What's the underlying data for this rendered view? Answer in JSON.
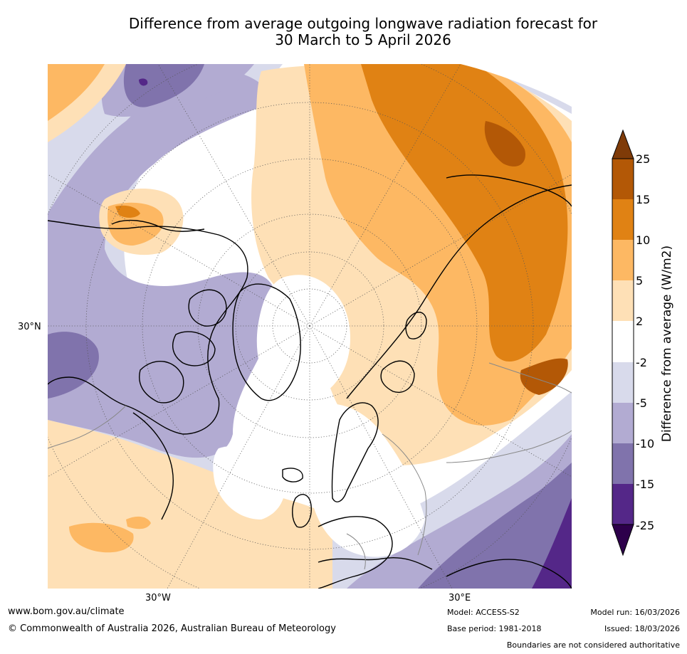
{
  "title": {
    "line1": "Difference from average outgoing longwave radiation forecast for",
    "line2": "30 March to 5 April 2026"
  },
  "map": {
    "projection": "north-polar-stereographic",
    "axis_labels": {
      "left": "30°N",
      "bottom_left": "30°W",
      "bottom_right": "30°E"
    }
  },
  "colorbar": {
    "title": "Difference from average (W/m2)",
    "ticks": [
      "25",
      "15",
      "10",
      "5",
      "2",
      "-2",
      "-5",
      "-10",
      "-15",
      "-25"
    ],
    "bins": [
      {
        "range": "above 25",
        "color": "#7f3b08"
      },
      {
        "range": "15 to 25",
        "color": "#b35806"
      },
      {
        "range": "10 to 15",
        "color": "#e08214"
      },
      {
        "range": "5 to 10",
        "color": "#fdb863"
      },
      {
        "range": "2 to 5",
        "color": "#fee0b6"
      },
      {
        "range": "-2 to 2",
        "color": "#ffffff"
      },
      {
        "range": "-5 to -2",
        "color": "#d8daeb"
      },
      {
        "range": "-10 to -5",
        "color": "#b2abd2"
      },
      {
        "range": "-15 to -10",
        "color": "#8073ac"
      },
      {
        "range": "-25 to -15",
        "color": "#542788"
      },
      {
        "range": "below -25",
        "color": "#2d004b"
      }
    ]
  },
  "footer": {
    "website": "www.bom.gov.au/climate",
    "copyright": "© Commonwealth of Australia 2026, Australian Bureau of Meteorology",
    "model": "Model: ACCESS-S2",
    "base_period": "Base period: 1981-2018",
    "model_run": "Model run: 16/03/2026",
    "issued": "Issued: 18/03/2026",
    "disclaimer": "Boundaries are not considered authoritative"
  }
}
